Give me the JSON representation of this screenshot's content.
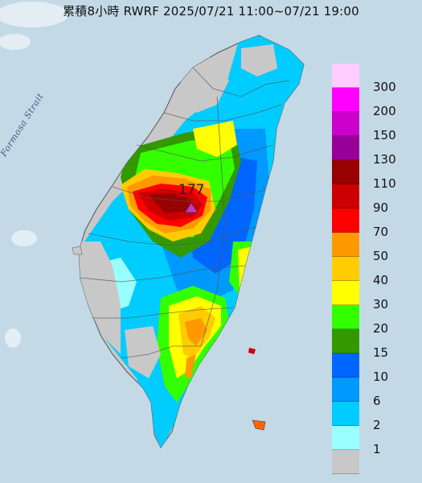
{
  "title": "累積8小時 RWRF 2025/07/21 11:00~07/21 19:00",
  "strait_label": "Formosa Strait",
  "max_value": "177",
  "legend": [
    {
      "label": "300",
      "color": "#ffccff"
    },
    {
      "label": "200",
      "color": "#ff00ff"
    },
    {
      "label": "150",
      "color": "#cc00cc"
    },
    {
      "label": "130",
      "color": "#990099"
    },
    {
      "label": "110",
      "color": "#990000"
    },
    {
      "label": "90",
      "color": "#cc0000"
    },
    {
      "label": "70",
      "color": "#ff0000"
    },
    {
      "label": "50",
      "color": "#ff9900"
    },
    {
      "label": "40",
      "color": "#ffcc00"
    },
    {
      "label": "30",
      "color": "#ffff00"
    },
    {
      "label": "20",
      "color": "#33ff00"
    },
    {
      "label": "15",
      "color": "#339900"
    },
    {
      "label": "10",
      "color": "#0066ff"
    },
    {
      "label": "6",
      "color": "#0099ff"
    },
    {
      "label": "2",
      "color": "#00ccff"
    },
    {
      "label": "1",
      "color": "#99ffff"
    },
    {
      "label": "",
      "color": "#c8c8c8"
    }
  ]
}
